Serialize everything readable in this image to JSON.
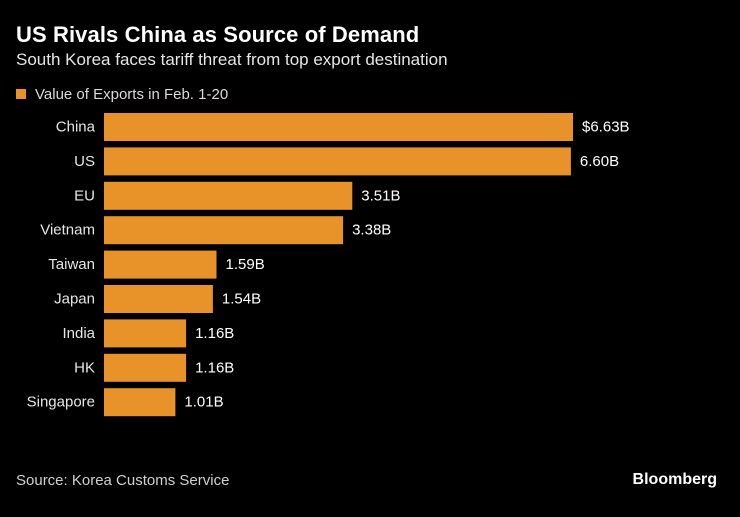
{
  "chart_data": {
    "type": "bar",
    "orientation": "horizontal",
    "title": "US Rivals China as Source of Demand",
    "subtitle": "South Korea faces tariff threat from top export destination",
    "legend": "Value of Exports in Feb. 1-20",
    "categories": [
      "China",
      "US",
      "EU",
      "Vietnam",
      "Taiwan",
      "Japan",
      "India",
      "HK",
      "Singapore"
    ],
    "values": [
      6.63,
      6.6,
      3.51,
      3.38,
      1.59,
      1.54,
      1.16,
      1.16,
      1.01
    ],
    "value_labels": [
      "$6.63B",
      "6.60B",
      "3.51B",
      "3.38B",
      "1.59B",
      "1.54B",
      "1.16B",
      "1.16B",
      "1.01B"
    ],
    "unit": "billion USD",
    "xlim": [
      0,
      6.63
    ],
    "grid": false,
    "bar_color": "#e8922a",
    "source": "Source: Korea Customs Service",
    "brand": "Bloomberg"
  },
  "colors": {
    "background": "#000000",
    "text": "#ffffff",
    "bar": "#e8922a"
  }
}
